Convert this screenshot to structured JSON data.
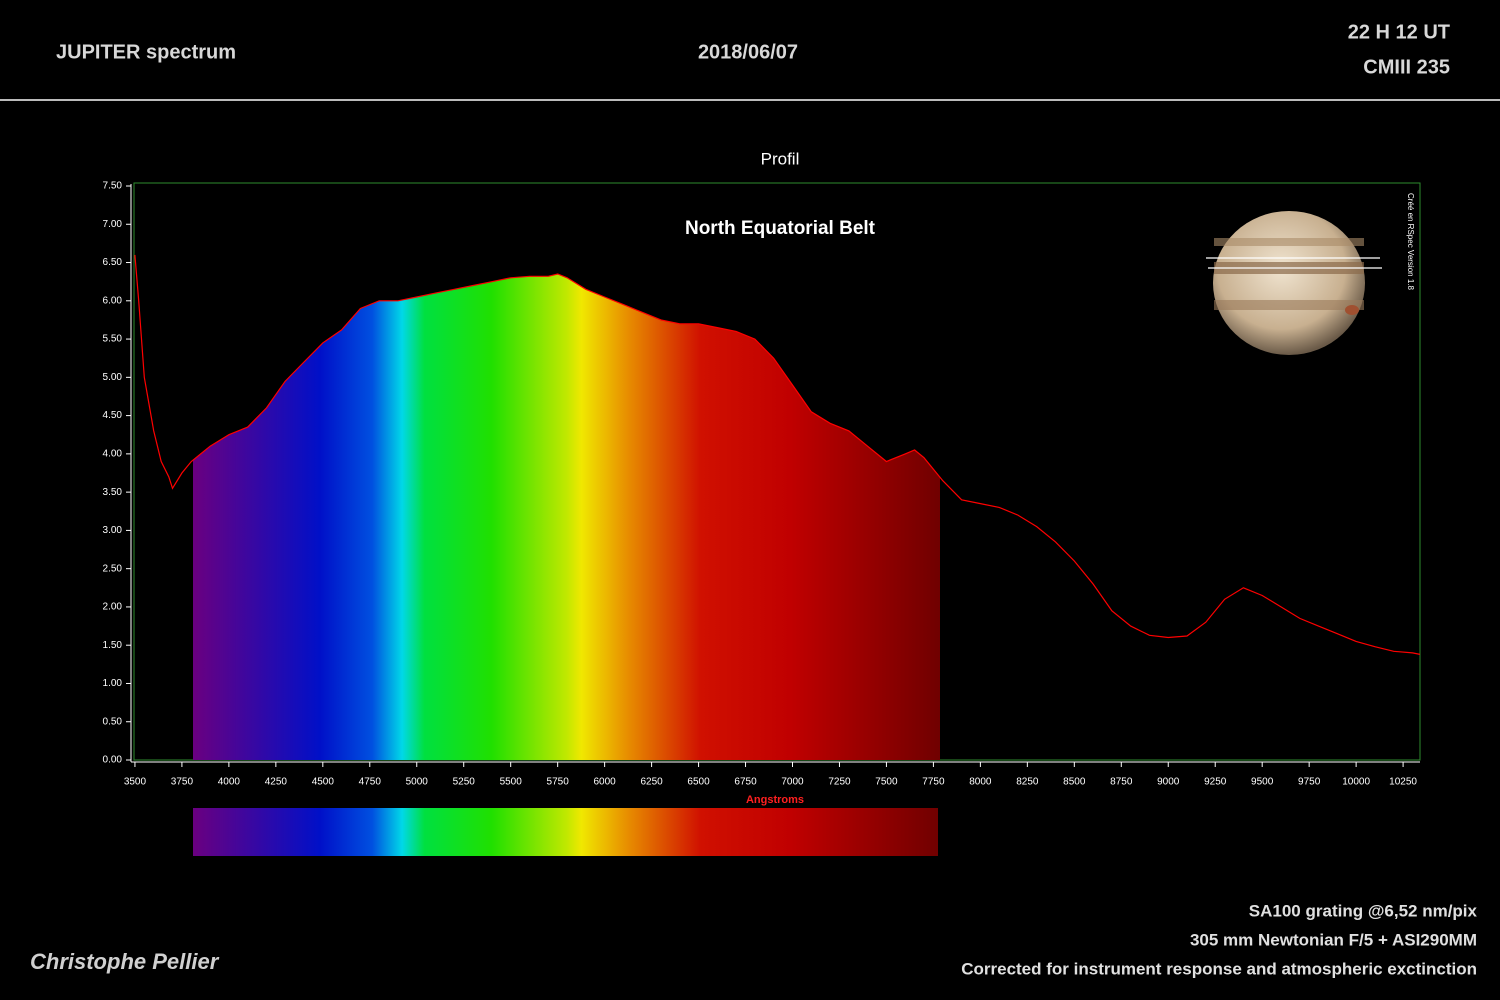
{
  "header": {
    "title": "JUPITER spectrum",
    "date": "2018/06/07",
    "time": "22 H 12 UT",
    "cm": "CMIII 235"
  },
  "footer": {
    "author": "Christophe Pellier",
    "lines": [
      "SA100 grating @6,52 nm/pix",
      "305 mm Newtonian F/5 + ASI290MM",
      "Corrected for instrument response and atmospheric exctinction"
    ]
  },
  "chart_data": {
    "type": "line",
    "title": "Profil",
    "annotation": "North Equatorial Belt",
    "x_label": "Angstroms",
    "credit": "Créé en RSpec Version 1.8",
    "color": "#ff0000",
    "x": [
      3500,
      3520,
      3550,
      3600,
      3640,
      3680,
      3700,
      3750,
      3800,
      3850,
      3900,
      4000,
      4100,
      4200,
      4300,
      4400,
      4500,
      4600,
      4700,
      4800,
      4900,
      5000,
      5100,
      5200,
      5300,
      5400,
      5500,
      5600,
      5700,
      5750,
      5800,
      5900,
      6000,
      6100,
      6200,
      6300,
      6400,
      6500,
      6600,
      6700,
      6800,
      6900,
      7000,
      7100,
      7200,
      7300,
      7400,
      7500,
      7600,
      7650,
      7700,
      7800,
      7900,
      8000,
      8100,
      8200,
      8300,
      8400,
      8500,
      8600,
      8700,
      8800,
      8900,
      9000,
      9100,
      9200,
      9300,
      9400,
      9500,
      9600,
      9700,
      9800,
      9900,
      10000,
      10100,
      10200,
      10300,
      10340
    ],
    "values": [
      6.6,
      6.0,
      5.0,
      4.3,
      3.9,
      3.7,
      3.55,
      3.75,
      3.9,
      4.0,
      4.1,
      4.25,
      4.35,
      4.6,
      4.95,
      5.2,
      5.45,
      5.62,
      5.9,
      6.0,
      6.0,
      6.05,
      6.1,
      6.15,
      6.2,
      6.25,
      6.3,
      6.32,
      6.32,
      6.35,
      6.3,
      6.15,
      6.05,
      5.95,
      5.85,
      5.75,
      5.7,
      5.7,
      5.65,
      5.6,
      5.5,
      5.25,
      4.9,
      4.55,
      4.4,
      4.3,
      4.1,
      3.9,
      4.0,
      4.05,
      3.95,
      3.65,
      3.4,
      3.35,
      3.3,
      3.2,
      3.05,
      2.85,
      2.6,
      2.3,
      1.95,
      1.75,
      1.63,
      1.6,
      1.62,
      1.8,
      2.1,
      2.25,
      2.15,
      2.0,
      1.85,
      1.75,
      1.65,
      1.55,
      1.48,
      1.42,
      1.4,
      1.38
    ],
    "xlim": [
      3495,
      10340
    ],
    "xticks": [
      3500,
      3750,
      4000,
      4250,
      4500,
      4750,
      5000,
      5250,
      5500,
      5750,
      6000,
      6250,
      6500,
      6750,
      7000,
      7250,
      7500,
      7750,
      8000,
      8250,
      8500,
      8750,
      9000,
      9250,
      9500,
      9750,
      10000,
      10250
    ],
    "ylim": [
      0,
      7.5
    ],
    "yticks": [
      {
        "value": 0,
        "label": "0.00"
      },
      {
        "value": 0.5,
        "label": "0.50"
      },
      {
        "value": 1,
        "label": "1.00"
      },
      {
        "value": 1.5,
        "label": "1.50"
      },
      {
        "value": 2,
        "label": "2.00"
      },
      {
        "value": 2.5,
        "label": "2.50"
      },
      {
        "value": 3,
        "label": "3.00"
      },
      {
        "value": 3.5,
        "label": "3.50"
      },
      {
        "value": 4,
        "label": "4.00"
      },
      {
        "value": 4.5,
        "label": "4.50"
      },
      {
        "value": 5,
        "label": "5.00"
      },
      {
        "value": 5.5,
        "label": "5.50"
      },
      {
        "value": 6,
        "label": "6.00"
      },
      {
        "value": 6.5,
        "label": "6.50"
      },
      {
        "value": 7,
        "label": "7.00"
      },
      {
        "value": 7.5,
        "label": "7.50"
      }
    ]
  }
}
